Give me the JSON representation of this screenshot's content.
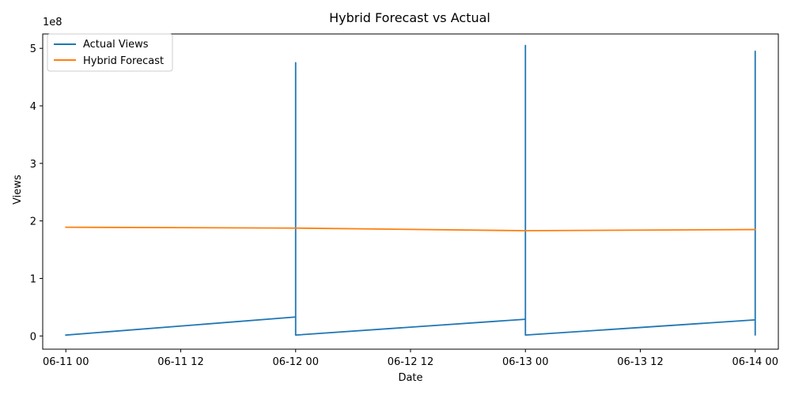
{
  "chart_data": {
    "type": "line",
    "title": "Hybrid Forecast vs Actual",
    "xlabel": "Date",
    "ylabel": "Views",
    "y_offset_label": "1e8",
    "xlim": [
      "2024-06-10 21:35",
      "2024-06-14 02:25"
    ],
    "ylim": [
      -23000000,
      525000000
    ],
    "x_ticks": [
      {
        "value": "2024-06-11 00:00",
        "label": "06-11 00"
      },
      {
        "value": "2024-06-11 12:00",
        "label": "06-11 12"
      },
      {
        "value": "2024-06-12 00:00",
        "label": "06-12 00"
      },
      {
        "value": "2024-06-12 12:00",
        "label": "06-12 12"
      },
      {
        "value": "2024-06-13 00:00",
        "label": "06-13 00"
      },
      {
        "value": "2024-06-13 12:00",
        "label": "06-13 12"
      },
      {
        "value": "2024-06-14 00:00",
        "label": "06-14 00"
      }
    ],
    "y_ticks": [
      {
        "value": 0,
        "label": "0"
      },
      {
        "value": 100000000,
        "label": "1"
      },
      {
        "value": 200000000,
        "label": "2"
      },
      {
        "value": 300000000,
        "label": "3"
      },
      {
        "value": 400000000,
        "label": "4"
      },
      {
        "value": 500000000,
        "label": "5"
      }
    ],
    "grid": false,
    "legend_position": "top-left",
    "series": [
      {
        "name": "Actual Views",
        "color": "#1f77b4",
        "points": [
          [
            "2024-06-11 00:00",
            1500000
          ],
          [
            "2024-06-12 00:00",
            33000000
          ],
          [
            "2024-06-12 00:00",
            13000000
          ],
          [
            "2024-06-12 00:00",
            165000000
          ],
          [
            "2024-06-12 00:00",
            8000000
          ],
          [
            "2024-06-12 00:00",
            70000000
          ],
          [
            "2024-06-12 00:00",
            3000000
          ],
          [
            "2024-06-12 00:00",
            475000000
          ],
          [
            "2024-06-12 00:00",
            1500000
          ],
          [
            "2024-06-13 00:00",
            29000000
          ],
          [
            "2024-06-13 00:00",
            10000000
          ],
          [
            "2024-06-13 00:00",
            175000000
          ],
          [
            "2024-06-13 00:00",
            5000000
          ],
          [
            "2024-06-13 00:00",
            505000000
          ],
          [
            "2024-06-13 00:00",
            1500000
          ],
          [
            "2024-06-14 00:00",
            28000000
          ],
          [
            "2024-06-14 00:00",
            8000000
          ],
          [
            "2024-06-14 00:00",
            180000000
          ],
          [
            "2024-06-14 00:00",
            4000000
          ],
          [
            "2024-06-14 00:00",
            495000000
          ],
          [
            "2024-06-14 00:00",
            2000000
          ]
        ]
      },
      {
        "name": "Hybrid Forecast",
        "color": "#ff7f0e",
        "points": [
          [
            "2024-06-11 00:00",
            189000000
          ],
          [
            "2024-06-12 00:00",
            187500000
          ],
          [
            "2024-06-13 00:00",
            183000000
          ],
          [
            "2024-06-14 00:00",
            185000000
          ]
        ]
      }
    ]
  }
}
